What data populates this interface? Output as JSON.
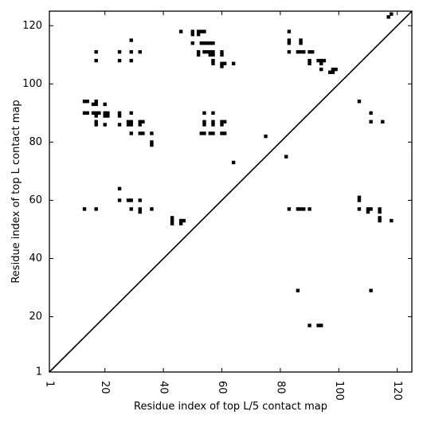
{
  "chart_data": {
    "type": "scatter",
    "title": "",
    "xlabel": "Residue index of top L/5 contact map",
    "ylabel": "Residue index of top L contact map",
    "xlim": [
      1,
      125
    ],
    "ylim": [
      1,
      125
    ],
    "xticks": [
      1,
      20,
      40,
      60,
      80,
      100,
      120
    ],
    "yticks": [
      1,
      20,
      40,
      60,
      80,
      100,
      120
    ],
    "grid": false,
    "legend": "none",
    "marker_color": "#000000",
    "diagonal": {
      "from": [
        1,
        1
      ],
      "to": [
        125,
        125
      ]
    },
    "series": [
      {
        "points": [
          [
            46,
            118
          ],
          [
            50,
            118
          ],
          [
            52,
            118
          ],
          [
            53,
            118
          ],
          [
            54,
            118
          ],
          [
            50,
            117
          ],
          [
            52,
            117
          ],
          [
            53,
            114
          ],
          [
            54,
            114
          ],
          [
            55,
            114
          ],
          [
            56,
            114
          ],
          [
            57,
            114
          ],
          [
            50,
            114
          ],
          [
            52,
            111
          ],
          [
            52,
            110
          ],
          [
            54,
            111
          ],
          [
            55,
            111
          ],
          [
            56,
            111
          ],
          [
            57,
            111
          ],
          [
            56,
            110
          ],
          [
            57,
            110
          ],
          [
            60,
            111
          ],
          [
            60,
            110
          ],
          [
            57,
            108
          ],
          [
            57,
            107
          ],
          [
            60,
            107
          ],
          [
            60,
            106
          ],
          [
            61,
            107
          ],
          [
            64,
            107
          ],
          [
            17,
            111
          ],
          [
            17,
            108
          ],
          [
            25,
            111
          ],
          [
            25,
            108
          ],
          [
            29,
            115
          ],
          [
            29,
            111
          ],
          [
            29,
            108
          ],
          [
            32,
            111
          ],
          [
            83,
            118
          ],
          [
            83,
            115
          ],
          [
            83,
            114
          ],
          [
            83,
            111
          ],
          [
            87,
            115
          ],
          [
            87,
            114
          ],
          [
            86,
            111
          ],
          [
            87,
            111
          ],
          [
            88,
            111
          ],
          [
            90,
            111
          ],
          [
            91,
            111
          ],
          [
            90,
            108
          ],
          [
            90,
            107
          ],
          [
            93,
            108
          ],
          [
            94,
            108
          ],
          [
            95,
            108
          ],
          [
            94,
            107
          ],
          [
            94,
            105
          ],
          [
            97,
            104
          ],
          [
            98,
            104
          ],
          [
            99,
            105
          ],
          [
            98,
            105
          ],
          [
            117,
            123
          ],
          [
            118,
            124
          ],
          [
            13,
            94
          ],
          [
            14,
            94
          ],
          [
            16,
            93
          ],
          [
            17,
            94
          ],
          [
            17,
            93
          ],
          [
            20,
            93
          ],
          [
            13,
            90
          ],
          [
            14,
            90
          ],
          [
            16,
            90
          ],
          [
            17,
            90
          ],
          [
            17,
            89
          ],
          [
            18,
            90
          ],
          [
            20,
            90
          ],
          [
            21,
            90
          ],
          [
            20,
            89
          ],
          [
            21,
            89
          ],
          [
            17,
            87
          ],
          [
            17,
            86
          ],
          [
            20,
            86
          ],
          [
            25,
            90
          ],
          [
            25,
            89
          ],
          [
            25,
            86
          ],
          [
            29,
            90
          ],
          [
            28,
            87
          ],
          [
            29,
            87
          ],
          [
            28,
            86
          ],
          [
            29,
            86
          ],
          [
            32,
            87
          ],
          [
            33,
            87
          ],
          [
            32,
            86
          ],
          [
            29,
            83
          ],
          [
            32,
            83
          ],
          [
            33,
            83
          ],
          [
            36,
            83
          ],
          [
            36,
            80
          ],
          [
            36,
            79
          ],
          [
            54,
            90
          ],
          [
            57,
            90
          ],
          [
            54,
            87
          ],
          [
            54,
            86
          ],
          [
            57,
            87
          ],
          [
            57,
            86
          ],
          [
            60,
            87
          ],
          [
            61,
            87
          ],
          [
            60,
            86
          ],
          [
            53,
            83
          ],
          [
            54,
            83
          ],
          [
            56,
            83
          ],
          [
            57,
            83
          ],
          [
            60,
            83
          ],
          [
            61,
            83
          ],
          [
            75,
            82
          ],
          [
            64,
            73
          ],
          [
            82,
            75
          ],
          [
            107,
            94
          ],
          [
            111,
            90
          ],
          [
            111,
            87
          ],
          [
            115,
            87
          ],
          [
            25,
            64
          ],
          [
            25,
            60
          ],
          [
            28,
            60
          ],
          [
            29,
            60
          ],
          [
            32,
            60
          ],
          [
            13,
            57
          ],
          [
            17,
            57
          ],
          [
            29,
            57
          ],
          [
            32,
            57
          ],
          [
            32,
            56
          ],
          [
            36,
            57
          ],
          [
            43,
            54
          ],
          [
            43,
            53
          ],
          [
            43,
            52
          ],
          [
            46,
            53
          ],
          [
            47,
            53
          ],
          [
            46,
            52
          ],
          [
            83,
            57
          ],
          [
            86,
            57
          ],
          [
            87,
            57
          ],
          [
            88,
            57
          ],
          [
            90,
            57
          ],
          [
            107,
            61
          ],
          [
            107,
            60
          ],
          [
            107,
            57
          ],
          [
            110,
            57
          ],
          [
            111,
            57
          ],
          [
            110,
            56
          ],
          [
            114,
            57
          ],
          [
            114,
            56
          ],
          [
            114,
            54
          ],
          [
            114,
            53
          ],
          [
            118,
            53
          ],
          [
            86,
            29
          ],
          [
            111,
            29
          ],
          [
            90,
            17
          ],
          [
            93,
            17
          ],
          [
            94,
            17
          ]
        ]
      }
    ]
  }
}
